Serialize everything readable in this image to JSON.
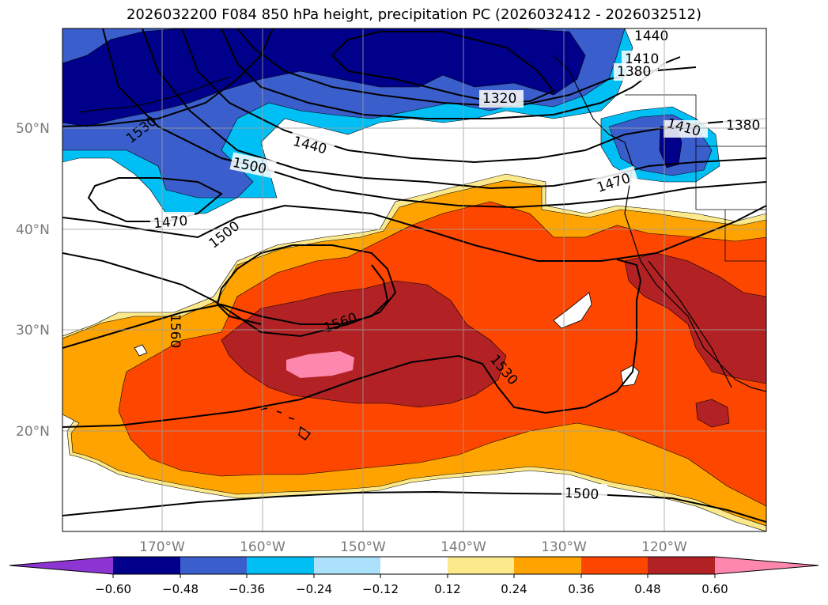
{
  "title": "2026032200 F084 850 hPa height, precipitation PC (2026032412 - 2026032512)",
  "colors": {
    "ext_min": "#8c35d2",
    "c1": "#00008a",
    "c2": "#3a5ecb",
    "c3": "#00bff5",
    "c4": "#abe1fa",
    "c5": "#ffffff",
    "c6": "#fbe98b",
    "c7": "#fea300",
    "c8": "#fd4600",
    "c9": "#b22224",
    "ext_max": "#fe88ad"
  },
  "map": {
    "lat_labels": [
      "50°N",
      "40°N",
      "30°N",
      "20°N"
    ],
    "lon_labels": [
      "170°W",
      "160°W",
      "150°W",
      "140°W",
      "130°W",
      "120°W"
    ],
    "contour_labels": [
      "1440",
      "1410",
      "1380",
      "1320",
      "1530",
      "1440",
      "1500",
      "1410",
      "1380",
      "1470",
      "1470",
      "1500",
      "1560",
      "1560",
      "1530",
      "1500"
    ]
  },
  "colorbar": {
    "ticks": [
      "−0.60",
      "−0.48",
      "−0.36",
      "−0.24",
      "−0.12",
      "0.12",
      "0.24",
      "0.36",
      "0.48",
      "0.60"
    ]
  }
}
